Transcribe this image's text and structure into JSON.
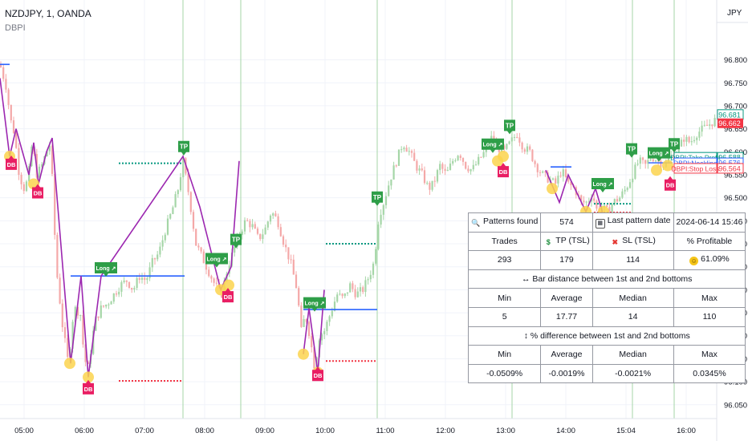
{
  "header": {
    "symbol": "NZDJPY, 1, OANDA",
    "indicator": "DBPI",
    "currency": "JPY"
  },
  "colors": {
    "candle_up": "#a5d6a7",
    "candle_down": "#f4a8a8",
    "pattern_line": "#9c27b0",
    "neckline": "#2962ff",
    "take_profit": "#089981",
    "stop_loss": "#f23645",
    "label_green": "#2e9e48",
    "label_pink": "#e91e63",
    "bottom_dot": "#fcd34d",
    "vline": "#a5d6a7"
  },
  "chart_data": {
    "type": "candlestick",
    "symbol": "NZDJPY",
    "interval": "1",
    "ylim": [
      96.02,
      96.93
    ],
    "yticks": [
      "96.800",
      "96.750",
      "96.700",
      "96.650",
      "96.600",
      "96.550",
      "96.500",
      "96.450",
      "96.400",
      "96.350",
      "96.300",
      "96.250",
      "96.200",
      "96.150",
      "96.100",
      "96.050"
    ],
    "xticks": [
      "05:00",
      "06:00",
      "07:00",
      "08:00",
      "09:00",
      "10:00",
      "11:00",
      "12:00",
      "13:00",
      "14:00",
      "15:04",
      "16:00"
    ],
    "price_path": [
      [
        0,
        96.79
      ],
      [
        8,
        96.74
      ],
      [
        13,
        96.67
      ],
      [
        18,
        96.64
      ],
      [
        24,
        96.55
      ],
      [
        30,
        96.52
      ],
      [
        35,
        96.54
      ],
      [
        40,
        96.62
      ],
      [
        46,
        96.55
      ],
      [
        52,
        96.57
      ],
      [
        58,
        96.6
      ],
      [
        63,
        96.62
      ],
      [
        70,
        96.35
      ],
      [
        78,
        96.22
      ],
      [
        85,
        96.14
      ],
      [
        92,
        96.26
      ],
      [
        100,
        96.25
      ],
      [
        105,
        96.15
      ],
      [
        110,
        96.13
      ],
      [
        118,
        96.23
      ],
      [
        126,
        96.26
      ],
      [
        134,
        96.27
      ],
      [
        142,
        96.29
      ],
      [
        150,
        96.31
      ],
      [
        158,
        96.32
      ],
      [
        166,
        96.3
      ],
      [
        174,
        96.33
      ],
      [
        182,
        96.32
      ],
      [
        190,
        96.36
      ],
      [
        198,
        96.38
      ],
      [
        206,
        96.43
      ],
      [
        214,
        96.47
      ],
      [
        222,
        96.52
      ],
      [
        228,
        96.58
      ],
      [
        236,
        96.5
      ],
      [
        244,
        96.4
      ],
      [
        252,
        96.37
      ],
      [
        260,
        96.34
      ],
      [
        268,
        96.31
      ],
      [
        276,
        96.29
      ],
      [
        284,
        96.35
      ],
      [
        290,
        96.38
      ],
      [
        298,
        96.42
      ],
      [
        306,
        96.45
      ],
      [
        314,
        96.44
      ],
      [
        322,
        96.41
      ],
      [
        330,
        96.43
      ],
      [
        338,
        96.47
      ],
      [
        346,
        96.45
      ],
      [
        354,
        96.4
      ],
      [
        362,
        96.36
      ],
      [
        370,
        96.3
      ],
      [
        376,
        96.2
      ],
      [
        380,
        96.25
      ],
      [
        386,
        96.2
      ],
      [
        392,
        96.13
      ],
      [
        398,
        96.2
      ],
      [
        404,
        96.21
      ],
      [
        412,
        96.25
      ],
      [
        420,
        96.29
      ],
      [
        428,
        96.28
      ],
      [
        436,
        96.31
      ],
      [
        444,
        96.29
      ],
      [
        452,
        96.3
      ],
      [
        460,
        96.33
      ],
      [
        466,
        96.36
      ],
      [
        472,
        96.46
      ],
      [
        478,
        96.49
      ],
      [
        486,
        96.54
      ],
      [
        494,
        96.58
      ],
      [
        502,
        96.62
      ],
      [
        510,
        96.6
      ],
      [
        518,
        96.57
      ],
      [
        526,
        96.55
      ],
      [
        534,
        96.52
      ],
      [
        540,
        96.53
      ],
      [
        548,
        96.57
      ],
      [
        556,
        96.55
      ],
      [
        564,
        96.58
      ],
      [
        572,
        96.6
      ],
      [
        580,
        96.57
      ],
      [
        588,
        96.56
      ],
      [
        596,
        96.58
      ],
      [
        604,
        96.6
      ],
      [
        612,
        96.63
      ],
      [
        620,
        96.61
      ],
      [
        628,
        96.6
      ],
      [
        636,
        96.62
      ],
      [
        644,
        96.64
      ],
      [
        652,
        96.61
      ],
      [
        660,
        96.6
      ],
      [
        668,
        96.57
      ],
      [
        676,
        96.55
      ],
      [
        684,
        96.54
      ],
      [
        692,
        96.53
      ],
      [
        700,
        96.56
      ],
      [
        708,
        96.53
      ],
      [
        716,
        96.52
      ],
      [
        724,
        96.49
      ],
      [
        732,
        96.49
      ],
      [
        738,
        96.51
      ],
      [
        744,
        96.47
      ],
      [
        750,
        96.48
      ],
      [
        756,
        96.47
      ],
      [
        764,
        96.49
      ],
      [
        772,
        96.5
      ],
      [
        780,
        96.52
      ],
      [
        788,
        96.55
      ],
      [
        796,
        96.58
      ],
      [
        804,
        96.57
      ],
      [
        812,
        96.59
      ],
      [
        820,
        96.58
      ],
      [
        828,
        96.57
      ],
      [
        836,
        96.59
      ],
      [
        844,
        96.6
      ],
      [
        852,
        96.63
      ],
      [
        860,
        96.62
      ],
      [
        868,
        96.64
      ],
      [
        876,
        96.65
      ],
      [
        884,
        96.66
      ],
      [
        892,
        96.67
      ]
    ],
    "patterns": [
      {
        "points": [
          [
            0,
            96.76
          ],
          [
            12,
            96.59
          ],
          [
            20,
            96.65
          ],
          [
            28,
            96.6
          ],
          [
            36,
            96.55
          ],
          [
            42,
            96.62
          ],
          [
            48,
            96.53
          ],
          [
            58,
            96.6
          ],
          [
            65,
            96.63
          ],
          [
            88,
            96.14
          ],
          [
            101,
            96.33
          ],
          [
            110,
            96.11
          ],
          [
            126,
            96.33
          ],
          [
            228,
            96.59
          ],
          [
            249,
            96.48
          ],
          [
            275,
            96.3
          ],
          [
            288,
            96.35
          ],
          [
            298,
            96.58
          ]
        ],
        "neckline": 96.33,
        "neckline_x": [
          88,
          230
        ],
        "tp": 96.575,
        "tp_x": [
          148,
          228
        ],
        "sl": 96.102,
        "sl_x": [
          148,
          228
        ]
      },
      {
        "points": [
          [
            378,
            96.16
          ],
          [
            385,
            96.26
          ],
          [
            396,
            96.12
          ],
          [
            404,
            96.3
          ]
        ],
        "neckline": 96.257,
        "neckline_x": [
          378,
          470
        ],
        "tp": 96.4,
        "tp_x": [
          406,
          470
        ],
        "sl": 96.145,
        "sl_x": [
          406,
          470
        ]
      },
      {
        "points": [
          [
            680,
            96.56
          ],
          [
            697,
            96.49
          ],
          [
            708,
            96.55
          ],
          [
            730,
            96.47
          ],
          [
            742,
            96.52
          ],
          [
            752,
            96.46
          ]
        ],
        "neckline": 96.567,
        "neckline_x": [
          686,
          712
        ],
        "tp": 96.487,
        "tp_x": [
          740,
          788
        ],
        "sl": 96.468,
        "sl_x": [
          740,
          788
        ]
      }
    ],
    "markers": [
      {
        "type": "DB",
        "x": 14,
        "price": 96.585
      },
      {
        "type": "DB",
        "x": 47,
        "price": 96.523
      },
      {
        "type": "DB",
        "x": 110,
        "price": 96.097
      },
      {
        "type": "DB",
        "x": 284,
        "price": 96.297
      },
      {
        "type": "DB",
        "x": 396,
        "price": 96.126
      },
      {
        "type": "DB",
        "x": 627,
        "price": 96.569
      },
      {
        "type": "DB",
        "x": 752,
        "price": 96.457
      },
      {
        "type": "DB",
        "x": 835,
        "price": 96.54
      },
      {
        "type": "TP",
        "x": 229,
        "price": 96.608
      },
      {
        "type": "TP",
        "x": 294,
        "price": 96.406
      },
      {
        "type": "TP",
        "x": 470,
        "price": 96.498
      },
      {
        "type": "TP",
        "x": 635,
        "price": 96.654
      },
      {
        "type": "TP",
        "x": 787,
        "price": 96.603
      },
      {
        "type": "TP",
        "x": 840,
        "price": 96.614
      },
      {
        "type": "Long",
        "x": 132,
        "price": 96.346
      },
      {
        "type": "Long",
        "x": 270,
        "price": 96.366
      },
      {
        "type": "Long",
        "x": 392,
        "price": 96.27
      },
      {
        "type": "Long",
        "x": 614,
        "price": 96.615
      },
      {
        "type": "Long",
        "x": 751,
        "price": 96.529
      },
      {
        "type": "Long",
        "x": 821,
        "price": 96.596
      }
    ],
    "bottom_dots": [
      [
        12,
        96.59
      ],
      [
        42,
        96.53
      ],
      [
        87,
        96.14
      ],
      [
        110,
        96.11
      ],
      [
        275,
        96.3
      ],
      [
        285,
        96.31
      ],
      [
        378,
        96.16
      ],
      [
        396,
        96.12
      ],
      [
        620,
        96.58
      ],
      [
        627,
        96.59
      ],
      [
        688,
        96.52
      ],
      [
        730,
        96.47
      ],
      [
        752,
        96.47
      ],
      [
        818,
        96.56
      ],
      [
        832,
        96.57
      ]
    ],
    "vlines": [
      228,
      300,
      470,
      638,
      788,
      840
    ],
    "price_labels": [
      {
        "price": 96.681,
        "text": "96.681",
        "color": "#089981",
        "style": "outline"
      },
      {
        "price": 96.662,
        "text": "96.662",
        "color": "#f23645",
        "style": "filled"
      },
      {
        "price": 96.588,
        "text": "96.588",
        "color": "#089981",
        "style": "outline"
      },
      {
        "price": 96.576,
        "text": "96.576",
        "color": "#2962ff",
        "style": "outline"
      },
      {
        "price": 96.564,
        "text": "96.564",
        "color": "#f23645",
        "style": "outline"
      }
    ],
    "line_labels": [
      {
        "price": 96.588,
        "text": "DBPI:Take Profit",
        "color": "#089981"
      },
      {
        "price": 96.576,
        "text": "DBPI:Neckline",
        "color": "#2962ff"
      },
      {
        "price": 96.564,
        "text": "DBPI:Stop Loss",
        "color": "#f23645"
      }
    ]
  },
  "stats": {
    "r1": {
      "patterns_label": "Patterns found",
      "patterns_val": "574",
      "last_label": "Last pattern date",
      "last_val": "2024-06-14 15:46"
    },
    "r2": {
      "trades": "Trades",
      "tp": "TP (TSL)",
      "sl": "SL (TSL)",
      "profitable": "% Profitable"
    },
    "r3": {
      "trades": "293",
      "tp": "179",
      "sl": "114",
      "profitable": "61.09%"
    },
    "r4": {
      "title": "↔ Bar distance between 1st and 2nd bottoms"
    },
    "r5": {
      "min": "Min",
      "avg": "Average",
      "median": "Median",
      "max": "Max"
    },
    "r6": {
      "min": "5",
      "avg": "17.77",
      "median": "14",
      "max": "110"
    },
    "r7": {
      "title": "↕ % difference between 1st and 2nd bottoms"
    },
    "r8": {
      "min": "Min",
      "avg": "Average",
      "median": "Median",
      "max": "Max"
    },
    "r9": {
      "min": "-0.0509%",
      "avg": "-0.0019%",
      "median": "-0.0021%",
      "max": "0.0345%"
    }
  }
}
